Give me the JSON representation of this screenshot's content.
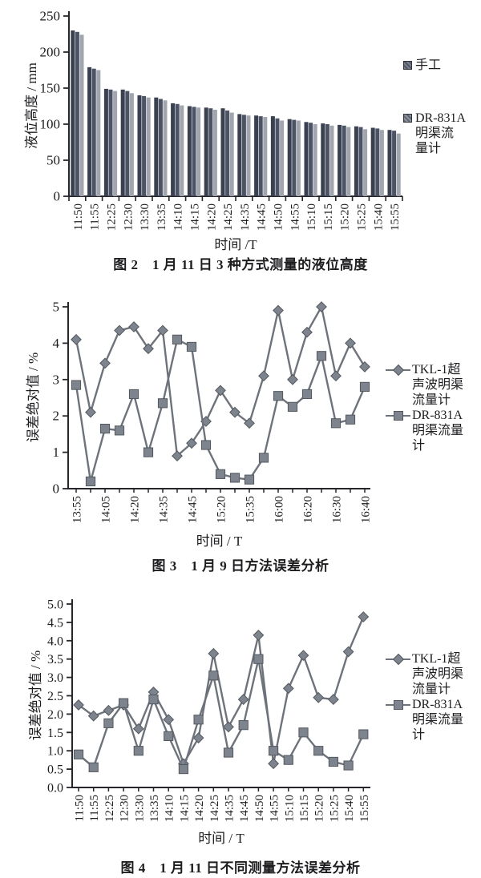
{
  "page": {
    "background": "#ffffff",
    "text_color": "#1d1d20"
  },
  "figures": [
    {
      "id": "fig2",
      "ylabel": "液位高度 / mm",
      "xlabel": "时间 /T",
      "caption": "图 2　1 月 11 日 3 种方式测量的液位高度",
      "legend": [
        {
          "marker": "patch-dark",
          "lines": [
            "手工"
          ]
        },
        {
          "marker": "patch-light",
          "lines": [
            "DR-831A",
            "明渠流",
            "量计"
          ]
        }
      ]
    },
    {
      "id": "fig3",
      "ylabel": "误差绝对值 / %",
      "xlabel": "时间 / T",
      "caption": "图 3　1 月 9 日方法误差分析",
      "legend": [
        {
          "marker": "line-diamond",
          "lines": [
            "TKL-1超",
            "声波明渠",
            "流量计"
          ]
        },
        {
          "marker": "line-square",
          "lines": [
            "DR-831A",
            "明渠流量",
            "计"
          ]
        }
      ]
    },
    {
      "id": "fig4",
      "ylabel": "误差绝对值 / %",
      "xlabel": "时间 / T",
      "caption": "图 4　1 月 11 日不同测量方法误差分析",
      "legend": [
        {
          "marker": "line-diamond",
          "lines": [
            "TKL-1超",
            "声波明渠",
            "流量计"
          ]
        },
        {
          "marker": "line-square",
          "lines": [
            "DR-831A",
            "明渠流量",
            "计"
          ]
        }
      ]
    }
  ],
  "chart_data": [
    {
      "type": "bar",
      "title": "图 2　1 月 11 日 3 种方式测量的液位高度",
      "xlabel": "时间 /T",
      "ylabel": "液位高度 / mm",
      "ylim": [
        0,
        250
      ],
      "yticks": [
        0,
        50,
        100,
        150,
        200,
        250
      ],
      "ytick_labels": [
        "0",
        "50",
        "100",
        "150",
        "200",
        "250"
      ],
      "grid": false,
      "legend_position": "right",
      "categories": [
        "11:50",
        "11:55",
        "12:25",
        "12:30",
        "13:30",
        "13:35",
        "14:10",
        "14:15",
        "14:20",
        "14:25",
        "14:35",
        "14:45",
        "14:50",
        "14:55",
        "15:10",
        "15:15",
        "15:20",
        "15:25",
        "15:40",
        "15:55"
      ],
      "series": [
        {
          "name": "手工",
          "color": "#394050",
          "values": [
            230,
            179,
            149,
            148,
            140,
            137,
            129,
            125,
            123,
            122,
            114,
            112,
            111,
            107,
            103,
            101,
            99,
            97,
            95,
            92
          ]
        },
        {
          "name": "",
          "color": "#4c5364",
          "values": [
            228,
            177,
            148,
            146,
            139,
            135,
            128,
            124,
            122,
            119,
            113,
            111,
            108,
            106,
            102,
            100,
            98,
            96,
            94,
            91
          ]
        },
        {
          "name": "DR-831A明渠流量计",
          "color": "#a0a5ae",
          "values": [
            224,
            175,
            146,
            143,
            137,
            133,
            126,
            123,
            120,
            116,
            112,
            110,
            105,
            105,
            100,
            98,
            96,
            93,
            92,
            87
          ]
        }
      ]
    },
    {
      "type": "line",
      "title": "图 3　1 月 9 日方法误差分析",
      "xlabel": "时间 / T",
      "ylabel": "误差绝对值 / %",
      "ylim": [
        0,
        5
      ],
      "yticks": [
        0,
        1,
        2,
        3,
        4,
        5
      ],
      "ytick_labels": [
        "0",
        "1",
        "2",
        "3",
        "4",
        "5"
      ],
      "grid": false,
      "legend_position": "right",
      "line_color": "#6e737b",
      "marker_fill": "#7e848d",
      "marker_stroke": "#53585f",
      "categories": [
        "13:55",
        "",
        "14:05",
        "",
        "14:20",
        "",
        "14:35",
        "",
        "14:45",
        "",
        "15:20",
        "",
        "15:35",
        "",
        "16:00",
        "",
        "16:20",
        "",
        "16:30",
        "",
        "16:40"
      ],
      "series": [
        {
          "name": "TKL-1超声波明渠流量计",
          "marker": "diamond",
          "values": [
            4.1,
            2.1,
            3.45,
            4.35,
            4.45,
            3.85,
            4.35,
            0.9,
            1.25,
            1.85,
            2.7,
            2.1,
            1.8,
            3.1,
            4.9,
            3.0,
            4.3,
            5.0,
            3.1,
            4.0,
            3.35
          ]
        },
        {
          "name": "DR-831A明渠流量计",
          "marker": "square",
          "values": [
            2.85,
            0.2,
            1.65,
            1.6,
            2.6,
            1.0,
            2.35,
            4.1,
            3.9,
            1.2,
            0.4,
            0.3,
            0.25,
            0.85,
            2.55,
            2.25,
            2.6,
            3.65,
            1.8,
            1.9,
            2.8
          ]
        }
      ]
    },
    {
      "type": "line",
      "title": "图 4　1 月 11 日不同测量方法误差分析",
      "xlabel": "时间 / T",
      "ylabel": "误差绝对值 / %",
      "ylim": [
        0,
        5
      ],
      "yticks": [
        0,
        0.5,
        1,
        1.5,
        2,
        2.5,
        3,
        3.5,
        4,
        4.5,
        5
      ],
      "ytick_labels": [
        "0.0",
        "0.5",
        "1.0",
        "1.5",
        "2.0",
        "2.5",
        "3.0",
        "3.5",
        "4.0",
        "4.5",
        "5.0"
      ],
      "grid": false,
      "legend_position": "right",
      "line_color": "#6e737b",
      "marker_fill": "#7e848d",
      "marker_stroke": "#53585f",
      "categories": [
        "11:50",
        "11:55",
        "12:25",
        "12:30",
        "13:30",
        "13:35",
        "14:10",
        "14:15",
        "14:20",
        "14:25",
        "14:35",
        "14:45",
        "14:50",
        "14:55",
        "15:10",
        "15:15",
        "15:20",
        "15:25",
        "15:40",
        "15:55"
      ],
      "series": [
        {
          "name": "TKL-1超声波明渠流量计",
          "marker": "diamond",
          "values": [
            2.25,
            1.95,
            2.1,
            2.25,
            1.6,
            2.6,
            1.85,
            0.65,
            1.35,
            3.65,
            1.65,
            2.4,
            4.15,
            0.65,
            2.7,
            3.6,
            2.45,
            2.4,
            3.7,
            4.65
          ]
        },
        {
          "name": "DR-831A明渠流量计",
          "marker": "square",
          "values": [
            0.9,
            0.55,
            1.75,
            2.3,
            1.0,
            2.4,
            1.4,
            0.5,
            1.85,
            3.05,
            0.95,
            1.7,
            3.5,
            1.0,
            0.75,
            1.5,
            1.0,
            0.7,
            0.6,
            1.45
          ]
        }
      ]
    }
  ]
}
